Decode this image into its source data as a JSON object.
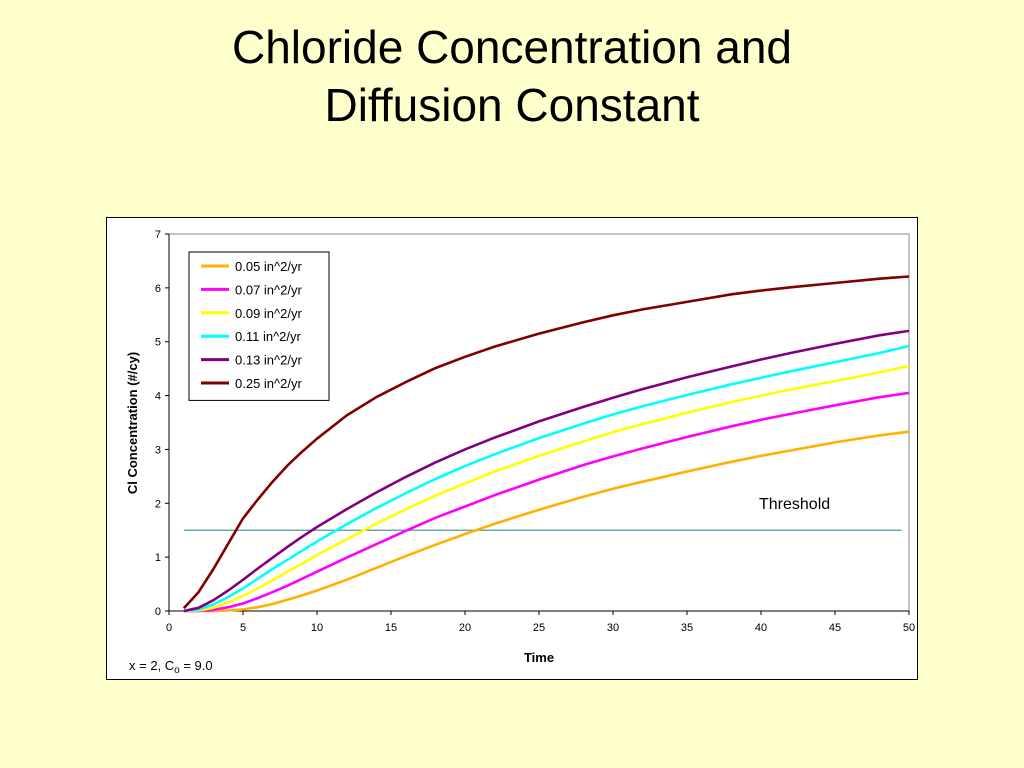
{
  "slide": {
    "title_line1": "Chloride Concentration and",
    "title_line2": "Diffusion Constant"
  },
  "chart_data": {
    "type": "line",
    "xlabel": "Time",
    "ylabel": "Cl Concentration (#/cy)",
    "xlim": [
      0,
      50
    ],
    "ylim": [
      0,
      7
    ],
    "xticks": [
      0,
      5,
      10,
      15,
      20,
      25,
      30,
      35,
      40,
      45,
      50
    ],
    "yticks": [
      0,
      1,
      2,
      3,
      4,
      5,
      6,
      7
    ],
    "grid": false,
    "legend_position": "top-left",
    "note": {
      "prefix": "x = 2, C",
      "subscript": "o",
      "suffix": " = 9.0"
    },
    "threshold": {
      "label": "Threshold",
      "value": 1.5,
      "x_start": 1,
      "x_end": 49.5,
      "color": "#4a9a9a"
    },
    "x": [
      1,
      2,
      3,
      4,
      5,
      6,
      7,
      8,
      9,
      10,
      12,
      14,
      16,
      18,
      20,
      22,
      25,
      28,
      30,
      32,
      35,
      38,
      40,
      42,
      45,
      48,
      50
    ],
    "series": [
      {
        "name": "0.05 in^2/yr",
        "color": "#ffb000",
        "values": [
          0,
          0,
          0,
          0.01,
          0.03,
          0.07,
          0.13,
          0.21,
          0.29,
          0.38,
          0.58,
          0.8,
          1.02,
          1.23,
          1.43,
          1.62,
          1.88,
          2.12,
          2.27,
          2.4,
          2.59,
          2.77,
          2.88,
          2.98,
          3.13,
          3.26,
          3.33
        ]
      },
      {
        "name": "0.07 in^2/yr",
        "color": "#ff00ff",
        "values": [
          0,
          0,
          0.02,
          0.07,
          0.14,
          0.24,
          0.35,
          0.47,
          0.6,
          0.73,
          0.99,
          1.24,
          1.49,
          1.73,
          1.94,
          2.15,
          2.44,
          2.71,
          2.87,
          3.02,
          3.23,
          3.43,
          3.55,
          3.66,
          3.82,
          3.97,
          4.05
        ]
      },
      {
        "name": "0.09 in^2/yr",
        "color": "#ffff00",
        "values": [
          0,
          0.01,
          0.06,
          0.16,
          0.28,
          0.42,
          0.57,
          0.73,
          0.88,
          1.04,
          1.33,
          1.62,
          1.89,
          2.14,
          2.37,
          2.59,
          2.88,
          3.15,
          3.32,
          3.47,
          3.68,
          3.88,
          4.0,
          4.11,
          4.27,
          4.43,
          4.55
        ]
      },
      {
        "name": "0.11 in^2/yr",
        "color": "#00ffff",
        "values": [
          0,
          0.03,
          0.12,
          0.26,
          0.42,
          0.6,
          0.78,
          0.95,
          1.12,
          1.29,
          1.61,
          1.91,
          2.19,
          2.45,
          2.69,
          2.91,
          3.21,
          3.48,
          3.65,
          3.8,
          4.01,
          4.21,
          4.33,
          4.45,
          4.62,
          4.79,
          4.92
        ]
      },
      {
        "name": "0.13 in^2/yr",
        "color": "#800080",
        "values": [
          0,
          0.06,
          0.2,
          0.38,
          0.58,
          0.79,
          0.99,
          1.19,
          1.38,
          1.56,
          1.89,
          2.2,
          2.49,
          2.76,
          3.0,
          3.22,
          3.52,
          3.79,
          3.96,
          4.12,
          4.34,
          4.54,
          4.67,
          4.79,
          4.96,
          5.12,
          5.2
        ]
      },
      {
        "name": "0.25 in^2/yr",
        "color": "#800000",
        "values": [
          0.05,
          0.35,
          0.78,
          1.25,
          1.72,
          2.07,
          2.4,
          2.7,
          2.96,
          3.2,
          3.63,
          3.97,
          4.25,
          4.51,
          4.72,
          4.91,
          5.15,
          5.36,
          5.49,
          5.6,
          5.74,
          5.88,
          5.95,
          6.01,
          6.09,
          6.17,
          6.21
        ]
      }
    ]
  }
}
